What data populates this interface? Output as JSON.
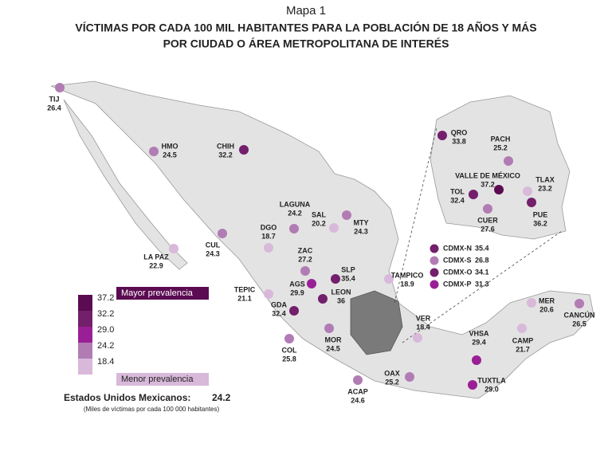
{
  "header": {
    "map_label": "Mapa 1",
    "title_line1": "VÍCTIMAS POR CADA 100 MIL HABITANTES PARA LA POBLACIÓN DE 18 AÑOS Y MÁS",
    "title_line2": "POR CIUDAD O ÁREA METROPOLITANA DE INTERÉS"
  },
  "cities": [
    {
      "name": "TIJ",
      "value": 26.4
    },
    {
      "name": "HMO",
      "value": 24.5
    },
    {
      "name": "CHIH",
      "value": 32.2
    },
    {
      "name": "LAGUNA",
      "value": 24.2
    },
    {
      "name": "SAL",
      "value": 20.2
    },
    {
      "name": "MTY",
      "value": 24.3
    },
    {
      "name": "DGO",
      "value": 18.7
    },
    {
      "name": "CUL",
      "value": 24.3
    },
    {
      "name": "LA PAZ",
      "value": 22.9
    },
    {
      "name": "ZAC",
      "value": 27.2
    },
    {
      "name": "SLP",
      "value": 35.4
    },
    {
      "name": "AGS",
      "value": 29.9
    },
    {
      "name": "TEPIC",
      "value": 21.1
    },
    {
      "name": "LEON",
      "value": 36.0
    },
    {
      "name": "GDA",
      "value": 32.4
    },
    {
      "name": "COL",
      "value": 25.8
    },
    {
      "name": "MOR",
      "value": 24.5
    },
    {
      "name": "TAMPICO",
      "value": 18.9
    },
    {
      "name": "VER",
      "value": 18.4
    },
    {
      "name": "ACAP",
      "value": 24.6
    },
    {
      "name": "OAX",
      "value": 25.2
    },
    {
      "name": "VHSA",
      "value": 29.4
    },
    {
      "name": "TUXTLA",
      "value": {
        "value": 29,
        "label": "29.0"
      }
    },
    {
      "name": "CAMP",
      "value": 21.7
    },
    {
      "name": "MER",
      "value": 20.6
    },
    {
      "name": "CANCÚN",
      "value": 26.5
    },
    {
      "name": "QRO",
      "value": 33.8
    },
    {
      "name": "PACH",
      "value": 25.2
    },
    {
      "name": "VALLE DE MÉXICO",
      "value": 37.2
    },
    {
      "name": "TOL",
      "value": 32.4
    },
    {
      "name": "TLAX",
      "value": 23.2
    },
    {
      "name": "CUER",
      "value": 27.6
    },
    {
      "name": "PUE",
      "value": 36.2
    }
  ],
  "cdmx": [
    {
      "name": "CDMX-N",
      "value": 35.4
    },
    {
      "name": "CDMX-S",
      "value": 26.8
    },
    {
      "name": "CDMX-O",
      "value": 34.1
    },
    {
      "name": "CDMX-P",
      "value": 31.3
    }
  ],
  "legend": {
    "high_label": "Mayor prevalencia",
    "low_label": "Menor prevalencia",
    "ticks": [
      37.2,
      32.2,
      {
        "value": 29,
        "label": "29.0"
      },
      24.2,
      18.4
    ],
    "colors": [
      "#5b0b52",
      "#731f6c",
      "#9a1f96",
      "#b17cb3",
      "#d8b9da"
    ]
  },
  "national": {
    "label": "Estados Unidos Mexicanos:",
    "value": 24.2
  },
  "note": "(Miles de víctimas por cada 100 000 habitantes)"
}
